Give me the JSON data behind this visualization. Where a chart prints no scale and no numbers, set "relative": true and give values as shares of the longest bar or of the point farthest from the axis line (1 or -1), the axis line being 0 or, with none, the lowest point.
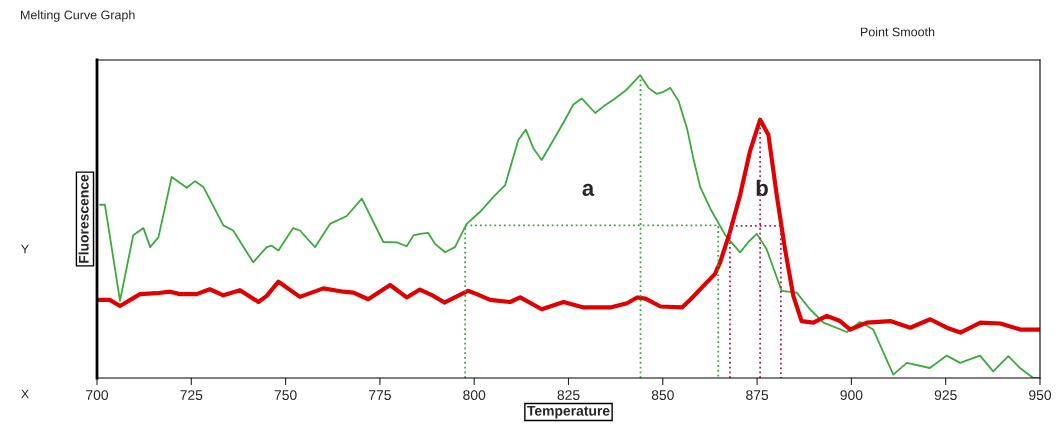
{
  "chart_data": {
    "type": "line",
    "title": "Melting Curve Graph",
    "xlabel": "Temperature",
    "ylabel": "Fluorescence",
    "relative": true,
    "xlim": [
      700,
      950
    ],
    "xticks": [
      700,
      725,
      750,
      775,
      800,
      825,
      850,
      875,
      900,
      925,
      950
    ],
    "grid": false,
    "legend": false,
    "marker": "none",
    "series": [
      {
        "color": "#3caa3c",
        "line_style": "solid",
        "x": [
          700.8,
          702.1,
          706.1,
          709.6,
          712.3,
          714.1,
          716.3,
          719.8,
          723.8,
          726.0,
          728.2,
          733.5,
          736.1,
          741.4,
          745.0,
          746.3,
          748.1,
          752.0,
          753.8,
          757.8,
          761.8,
          766.2,
          770.2,
          775.9,
          779.5,
          782.1,
          783.9,
          785.6,
          787.8,
          789.6,
          792.3,
          794.9,
          798.0,
          801.5,
          805.1,
          808.2,
          811.7,
          813.7,
          815.7,
          817.9,
          821.0,
          823.6,
          826.3,
          828.5,
          832.1,
          834.3,
          836.9,
          840.4,
          844.0,
          846.2,
          848.4,
          850.2,
          852.0,
          854.2,
          856.4,
          858.1,
          859.9,
          862.6,
          866.6,
          870.5,
          872.7,
          874.9,
          877.5,
          881.5,
          885.5,
          889.0,
          892.6,
          898.8,
          902.3,
          905.8,
          911.1,
          914.7,
          920.8,
          925.3,
          928.8,
          934.1,
          937.6,
          941.6,
          944.7,
          948.2,
          949.6
        ],
        "values": [
          0.572,
          0.572,
          0.255,
          0.471,
          0.495,
          0.432,
          0.465,
          0.664,
          0.628,
          0.65,
          0.631,
          0.504,
          0.487,
          0.382,
          0.432,
          0.437,
          0.421,
          0.495,
          0.487,
          0.432,
          0.509,
          0.535,
          0.592,
          0.449,
          0.448,
          0.435,
          0.471,
          0.476,
          0.479,
          0.443,
          0.415,
          0.432,
          0.509,
          0.548,
          0.598,
          0.637,
          0.786,
          0.82,
          0.758,
          0.72,
          0.786,
          0.842,
          0.903,
          0.923,
          0.875,
          0.897,
          0.919,
          0.952,
          1.0,
          0.958,
          0.938,
          0.945,
          0.958,
          0.914,
          0.825,
          0.725,
          0.631,
          0.559,
          0.471,
          0.415,
          0.449,
          0.476,
          0.426,
          0.288,
          0.282,
          0.227,
          0.183,
          0.152,
          0.185,
          0.16,
          0.011,
          0.05,
          0.033,
          0.074,
          0.05,
          0.074,
          0.022,
          0.072,
          0.033,
          0.0,
          0.0
        ]
      },
      {
        "color": "#e00000",
        "line_style": "solid",
        "x": [
          700.4,
          703.4,
          706.1,
          711.4,
          715.8,
          719.4,
          722.0,
          726.4,
          729.9,
          733.5,
          737.9,
          742.8,
          745.0,
          748.1,
          753.8,
          760.0,
          765.3,
          768.0,
          771.9,
          777.7,
          782.1,
          785.6,
          789.2,
          792.1,
          798.3,
          800.7,
          804.2,
          809.5,
          812.2,
          817.9,
          823.7,
          829.0,
          836.1,
          840.5,
          843.2,
          845.4,
          849.4,
          855.1,
          857.4,
          860.9,
          863.8,
          865.2,
          867.8,
          870.5,
          873.1,
          875.8,
          878.0,
          880.2,
          882.4,
          884.6,
          886.8,
          889.9,
          893.5,
          897.0,
          899.7,
          904.1,
          910.3,
          915.6,
          920.9,
          925.3,
          928.9,
          934.2,
          939.5,
          944.8,
          950.0
        ],
        "values": [
          0.258,
          0.258,
          0.238,
          0.277,
          0.28,
          0.285,
          0.277,
          0.277,
          0.293,
          0.273,
          0.29,
          0.251,
          0.271,
          0.318,
          0.268,
          0.296,
          0.285,
          0.282,
          0.26,
          0.307,
          0.266,
          0.292,
          0.271,
          0.249,
          0.288,
          0.277,
          0.258,
          0.251,
          0.266,
          0.227,
          0.251,
          0.233,
          0.233,
          0.247,
          0.266,
          0.262,
          0.236,
          0.233,
          0.26,
          0.306,
          0.343,
          0.382,
          0.482,
          0.604,
          0.748,
          0.853,
          0.803,
          0.604,
          0.426,
          0.271,
          0.188,
          0.183,
          0.205,
          0.188,
          0.16,
          0.183,
          0.188,
          0.166,
          0.194,
          0.166,
          0.15,
          0.183,
          0.18,
          0.16,
          0.16
        ]
      },
      {
        "color": "#3caa3c",
        "line_style": "dotted",
        "x": [
          797.6,
          797.6,
          864.7,
          864.7
        ],
        "values": [
          0,
          0.504,
          0.504,
          0
        ]
      },
      {
        "color": "#3caa3c",
        "line_style": "dotted",
        "x": [
          844.1,
          844.1
        ],
        "values": [
          0,
          1.0
        ]
      },
      {
        "color": "#b0205a",
        "line_style": "dotted",
        "x": [
          867.8,
          867.8,
          881.3,
          881.3
        ],
        "values": [
          0,
          0.502,
          0.502,
          0
        ]
      },
      {
        "color": "#b0205a",
        "line_style": "dotted",
        "x": [
          875.8,
          875.8
        ],
        "values": [
          0,
          0.853
        ]
      }
    ],
    "annotations": [
      "a",
      "b",
      "Point Smooth",
      "Y",
      "X"
    ]
  }
}
